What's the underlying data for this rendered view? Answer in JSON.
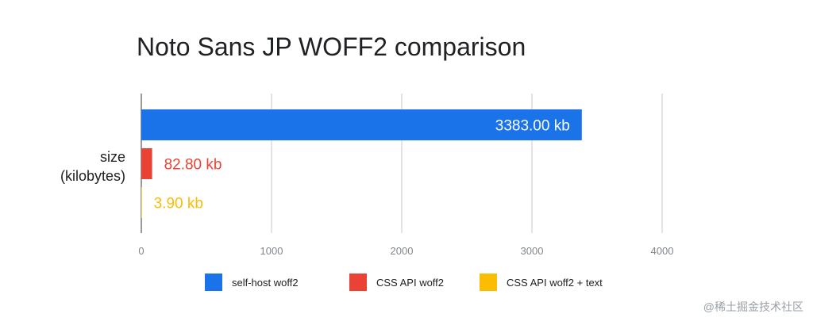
{
  "chart_data": {
    "type": "bar",
    "orientation": "horizontal",
    "title": "Noto Sans JP WOFF2 comparison",
    "categories": [
      "size (kilobytes)"
    ],
    "category_lines": [
      "size",
      "(kilobytes)"
    ],
    "xlim": [
      0,
      4000
    ],
    "xticks": [
      0,
      1000,
      2000,
      3000,
      4000
    ],
    "grid": true,
    "legend_position": "bottom",
    "series": [
      {
        "name": "self-host woff2",
        "values": [
          3383.0
        ],
        "label": "3383.00 kb",
        "color": "#1a73e8"
      },
      {
        "name": "CSS API woff2",
        "values": [
          82.8
        ],
        "label": "82.80 kb",
        "color": "#ea4335"
      },
      {
        "name": "CSS API woff2 + text",
        "values": [
          3.9
        ],
        "label": "3.90 kb",
        "color": "#fbbc04"
      }
    ]
  },
  "watermark": "@稀土掘金技术社区"
}
